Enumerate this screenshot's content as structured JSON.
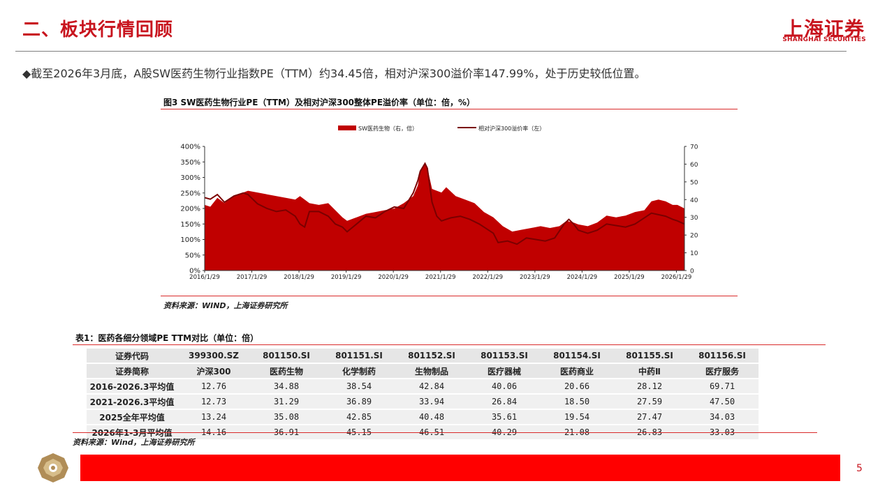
{
  "header": {
    "title": "二、板块行情回顾",
    "logo_cn": "上海证券",
    "logo_en": "SHANGHAI SECURITIES"
  },
  "summary": "◆截至2026年3月底，A股SW医药生物行业指数PE（TTM）约34.45倍，相对沪深300溢价率147.99%，处于历史较低位置。",
  "figure": {
    "title": "图3 SW医药生物行业PE（TTM）及相对沪深300整体PE溢价率（单位：倍，%）",
    "source": "资料来源：WIND，上海证券研究所"
  },
  "chart_data": {
    "type": "area",
    "legend": [
      "SW医药生物（右，倍）",
      "相对沪深300溢价率（左）"
    ],
    "legend_position": "top-center",
    "x_ticks": [
      "2016/1/29",
      "2017/1/29",
      "2018/1/29",
      "2019/1/29",
      "2020/1/29",
      "2021/1/29",
      "2022/1/29",
      "2023/1/29",
      "2024/1/29",
      "2025/1/29",
      "2026/1/29"
    ],
    "x_range": [
      2016.08,
      2026.25
    ],
    "y_left_ticks": [
      "0%",
      "50%",
      "100%",
      "150%",
      "200%",
      "250%",
      "300%",
      "350%",
      "400%"
    ],
    "y_left_range": [
      0,
      400
    ],
    "y_right_ticks": [
      "0",
      "10",
      "20",
      "30",
      "40",
      "50",
      "60",
      "70"
    ],
    "y_right_range": [
      0,
      70
    ],
    "colors": {
      "area": "#c00000",
      "line": "#7a0000"
    },
    "series": [
      {
        "name": "SW医药生物（右，倍）",
        "axis": "right",
        "points": [
          [
            2016.08,
            37
          ],
          [
            2016.2,
            36
          ],
          [
            2016.35,
            41
          ],
          [
            2016.5,
            38
          ],
          [
            2016.7,
            42
          ],
          [
            2016.9,
            44
          ],
          [
            2017.0,
            45
          ],
          [
            2017.2,
            44
          ],
          [
            2017.4,
            43
          ],
          [
            2017.6,
            42
          ],
          [
            2017.8,
            41
          ],
          [
            2018.0,
            40
          ],
          [
            2018.1,
            42
          ],
          [
            2018.3,
            38
          ],
          [
            2018.5,
            37
          ],
          [
            2018.7,
            38
          ],
          [
            2018.85,
            34
          ],
          [
            2019.0,
            30
          ],
          [
            2019.1,
            28
          ],
          [
            2019.3,
            30
          ],
          [
            2019.5,
            32
          ],
          [
            2019.7,
            33
          ],
          [
            2019.9,
            34
          ],
          [
            2020.1,
            35
          ],
          [
            2020.3,
            38
          ],
          [
            2020.5,
            42
          ],
          [
            2020.6,
            48
          ],
          [
            2020.65,
            56
          ],
          [
            2020.75,
            61
          ],
          [
            2020.8,
            58
          ],
          [
            2020.9,
            46
          ],
          [
            2021.0,
            45
          ],
          [
            2021.1,
            44
          ],
          [
            2021.2,
            47
          ],
          [
            2021.4,
            42
          ],
          [
            2021.6,
            40
          ],
          [
            2021.8,
            38
          ],
          [
            2022.0,
            33
          ],
          [
            2022.2,
            30
          ],
          [
            2022.4,
            25
          ],
          [
            2022.6,
            22
          ],
          [
            2022.8,
            23
          ],
          [
            2023.0,
            24
          ],
          [
            2023.2,
            25
          ],
          [
            2023.4,
            24
          ],
          [
            2023.6,
            25
          ],
          [
            2023.75,
            28
          ],
          [
            2023.9,
            27
          ],
          [
            2024.0,
            26
          ],
          [
            2024.2,
            25
          ],
          [
            2024.4,
            27
          ],
          [
            2024.6,
            31
          ],
          [
            2024.8,
            30
          ],
          [
            2025.0,
            31
          ],
          [
            2025.2,
            33
          ],
          [
            2025.4,
            34
          ],
          [
            2025.55,
            39
          ],
          [
            2025.7,
            40
          ],
          [
            2025.85,
            39
          ],
          [
            2026.0,
            37
          ],
          [
            2026.1,
            37
          ],
          [
            2026.25,
            35
          ]
        ]
      },
      {
        "name": "相对沪深300溢价率（左）",
        "axis": "left",
        "points": [
          [
            2016.08,
            235
          ],
          [
            2016.2,
            230
          ],
          [
            2016.35,
            245
          ],
          [
            2016.5,
            220
          ],
          [
            2016.7,
            240
          ],
          [
            2016.9,
            250
          ],
          [
            2017.0,
            245
          ],
          [
            2017.2,
            215
          ],
          [
            2017.4,
            200
          ],
          [
            2017.6,
            190
          ],
          [
            2017.8,
            195
          ],
          [
            2018.0,
            175
          ],
          [
            2018.1,
            150
          ],
          [
            2018.2,
            140
          ],
          [
            2018.3,
            190
          ],
          [
            2018.5,
            190
          ],
          [
            2018.7,
            175
          ],
          [
            2018.85,
            150
          ],
          [
            2019.0,
            140
          ],
          [
            2019.1,
            125
          ],
          [
            2019.3,
            150
          ],
          [
            2019.5,
            175
          ],
          [
            2019.7,
            170
          ],
          [
            2019.9,
            190
          ],
          [
            2020.1,
            205
          ],
          [
            2020.3,
            200
          ],
          [
            2020.5,
            250
          ],
          [
            2020.6,
            290
          ],
          [
            2020.65,
            320
          ],
          [
            2020.75,
            345
          ],
          [
            2020.8,
            330
          ],
          [
            2020.9,
            220
          ],
          [
            2021.0,
            175
          ],
          [
            2021.1,
            160
          ],
          [
            2021.3,
            170
          ],
          [
            2021.5,
            175
          ],
          [
            2021.7,
            165
          ],
          [
            2021.9,
            150
          ],
          [
            2022.0,
            140
          ],
          [
            2022.2,
            120
          ],
          [
            2022.3,
            90
          ],
          [
            2022.5,
            95
          ],
          [
            2022.7,
            85
          ],
          [
            2022.9,
            105
          ],
          [
            2023.1,
            100
          ],
          [
            2023.3,
            95
          ],
          [
            2023.5,
            105
          ],
          [
            2023.7,
            150
          ],
          [
            2023.8,
            165
          ],
          [
            2023.9,
            150
          ],
          [
            2024.0,
            130
          ],
          [
            2024.2,
            120
          ],
          [
            2024.4,
            130
          ],
          [
            2024.6,
            150
          ],
          [
            2024.8,
            145
          ],
          [
            2025.0,
            140
          ],
          [
            2025.2,
            150
          ],
          [
            2025.4,
            170
          ],
          [
            2025.55,
            185
          ],
          [
            2025.7,
            180
          ],
          [
            2025.85,
            175
          ],
          [
            2026.0,
            165
          ],
          [
            2026.1,
            160
          ],
          [
            2026.25,
            150
          ]
        ]
      }
    ]
  },
  "table": {
    "title": "表1：医药各细分领域PE TTM对比（单位：倍）",
    "codes": [
      "证券代码",
      "399300.SZ",
      "801150.SI",
      "801151.SI",
      "801152.SI",
      "801153.SI",
      "801154.SI",
      "801155.SI",
      "801156.SI"
    ],
    "names": [
      "证券简称",
      "沪深300",
      "医药生物",
      "化学制药",
      "生物制品",
      "医疗器械",
      "医药商业",
      "中药Ⅱ",
      "医疗服务"
    ],
    "rows": [
      [
        "2016-2026.3平均值",
        "12.76",
        "34.88",
        "38.54",
        "42.84",
        "40.06",
        "20.66",
        "28.12",
        "69.71"
      ],
      [
        "2021-2026.3平均值",
        "12.73",
        "31.29",
        "36.89",
        "33.94",
        "26.84",
        "18.50",
        "27.59",
        "47.50"
      ],
      [
        "2025全年平均值",
        "13.24",
        "35.08",
        "42.85",
        "40.48",
        "35.61",
        "19.54",
        "27.47",
        "34.03"
      ],
      [
        "2026年1-3月平均值",
        "14.16",
        "36.91",
        "45.15",
        "46.51",
        "40.29",
        "21.08",
        "26.83",
        "33.03"
      ]
    ],
    "source": "资料来源：Wind，上海证券研究所"
  },
  "footer": {
    "page": "5"
  }
}
